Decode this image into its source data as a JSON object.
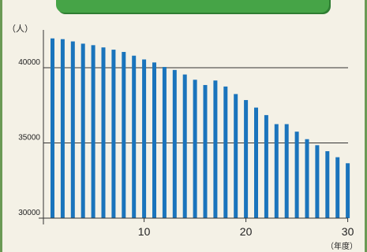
{
  "chart_data": {
    "type": "bar",
    "title": "",
    "ylabel": "（人）",
    "xlabel": "（年度）",
    "x": [
      1,
      2,
      3,
      4,
      5,
      6,
      7,
      8,
      9,
      10,
      11,
      12,
      13,
      14,
      15,
      16,
      17,
      18,
      19,
      20,
      21,
      22,
      23,
      24,
      25,
      26,
      27,
      28,
      29,
      30
    ],
    "values": [
      41950,
      41900,
      41750,
      41600,
      41500,
      41350,
      41200,
      41050,
      40800,
      40550,
      40350,
      40050,
      39850,
      39550,
      39200,
      38850,
      39150,
      38750,
      38250,
      37850,
      37350,
      36850,
      36250,
      36250,
      35750,
      35250,
      34850,
      34450,
      34050,
      33650
    ],
    "ylim": [
      30000,
      43000
    ],
    "yticks": [
      30000,
      35000,
      40000
    ],
    "xticks": [
      10,
      20,
      30
    ],
    "gridlines": [
      35000,
      40000
    ],
    "bar_color": "#1a74bc"
  }
}
